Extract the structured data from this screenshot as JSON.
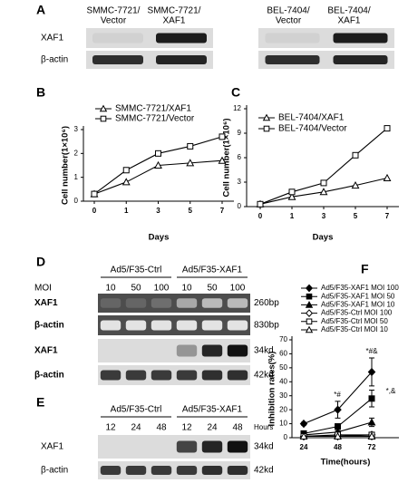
{
  "panel_labels": [
    "A",
    "B",
    "C",
    "D",
    "E",
    "F"
  ],
  "blot_a": {
    "left_columns": [
      [
        "SMMC-7721/",
        "Vector"
      ],
      [
        "SMMC-7721/",
        "XAF1"
      ]
    ],
    "right_columns": [
      [
        "BEL-7404/",
        "Vector"
      ],
      [
        "BEL-7404/",
        "XAF1"
      ]
    ],
    "rows": [
      "XAF1",
      "β-actin"
    ]
  },
  "blot_d": {
    "groups": [
      "Ad5/F35-Ctrl",
      "Ad5/F35-XAF1"
    ],
    "lane_title": "MOI",
    "lanes": [
      "10",
      "50",
      "100",
      "10",
      "50",
      "100"
    ],
    "rows": [
      {
        "label": "XAF1",
        "size": "260bp"
      },
      {
        "label": "β-actin",
        "size": "830bp"
      },
      {
        "label": "XAF1",
        "size": "34kd"
      },
      {
        "label": "β-actin",
        "size": "42kd"
      }
    ]
  },
  "blot_e": {
    "groups": [
      "Ad5/F35-Ctrl",
      "Ad5/F35-XAF1"
    ],
    "lane_title": "Hours",
    "lanes": [
      "12",
      "24",
      "48",
      "12",
      "24",
      "48"
    ],
    "rows": [
      {
        "label": "XAF1",
        "size": "34kd"
      },
      {
        "label": "β-actin",
        "size": "42kd"
      }
    ]
  },
  "chart_data": [
    {
      "type": "line",
      "categories": [
        "0",
        "1",
        "3",
        "5",
        "7"
      ],
      "x_label": "Days",
      "y_label": "Cell number(1×10⁶)",
      "ylim": [
        0,
        3
      ],
      "yticks": [
        0,
        1,
        2,
        3
      ],
      "legend": "upper left",
      "series": [
        {
          "name": "SMMC-7721/XAF1",
          "color": "#000000",
          "marker": "triangle",
          "filled": false,
          "values": [
            0.3,
            0.8,
            1.5,
            1.6,
            1.7
          ]
        },
        {
          "name": "SMMC-7721/Vector",
          "color": "#000000",
          "marker": "square",
          "filled": false,
          "values": [
            0.3,
            1.3,
            2.0,
            2.3,
            2.7
          ]
        }
      ]
    },
    {
      "type": "line",
      "categories": [
        "0",
        "1",
        "3",
        "5",
        "7"
      ],
      "x_label": "Days",
      "y_label": "Cell number(1×10⁶)",
      "ylim": [
        0,
        12
      ],
      "yticks": [
        0,
        3,
        6,
        9,
        12
      ],
      "legend": "upper left",
      "series": [
        {
          "name": "BEL-7404/XAF1",
          "color": "#000000",
          "marker": "triangle",
          "filled": false,
          "values": [
            0.3,
            1.2,
            1.8,
            2.6,
            3.5
          ]
        },
        {
          "name": "BEL-7404/Vector",
          "color": "#000000",
          "marker": "square",
          "filled": false,
          "values": [
            0.3,
            1.8,
            2.9,
            6.3,
            9.6
          ]
        }
      ]
    },
    {
      "type": "line",
      "categories": [
        "24",
        "48",
        "72"
      ],
      "x_label": "Time(hours)",
      "y_label": "Inhibition rates(%)",
      "ylim": [
        0,
        70
      ],
      "yticks": [
        0,
        10,
        20,
        30,
        40,
        50,
        60,
        70
      ],
      "legend": "top",
      "annotations": [
        "*#",
        "*#&",
        "*,&"
      ],
      "series": [
        {
          "name": "Ad5/F35-XAF1 MOI 100",
          "color": "#000000",
          "marker": "diamond",
          "filled": true,
          "values": [
            10,
            20,
            47
          ],
          "errors": [
            1,
            6,
            10
          ]
        },
        {
          "name": "Ad5/F35-XAF1 MOI 50",
          "color": "#000000",
          "marker": "square",
          "filled": true,
          "values": [
            3,
            8,
            28
          ],
          "errors": [
            1,
            2,
            6
          ]
        },
        {
          "name": "Ad5/F35-XAF1 MOI 10",
          "color": "#000000",
          "marker": "triangle",
          "filled": true,
          "values": [
            2,
            4,
            11
          ],
          "errors": [
            1,
            1,
            3
          ]
        },
        {
          "name": "Ad5/F35-Ctrl MOI 100",
          "color": "#000000",
          "marker": "diamond",
          "filled": false,
          "values": [
            1,
            1,
            2
          ]
        },
        {
          "name": "Ad5/F35-Ctrl MOI 50",
          "color": "#000000",
          "marker": "square",
          "filled": false,
          "values": [
            1,
            2,
            2
          ]
        },
        {
          "name": "Ad5/F35-Ctrl MOI 10",
          "color": "#000000",
          "marker": "triangle",
          "filled": false,
          "values": [
            1,
            1,
            1
          ]
        }
      ]
    }
  ]
}
